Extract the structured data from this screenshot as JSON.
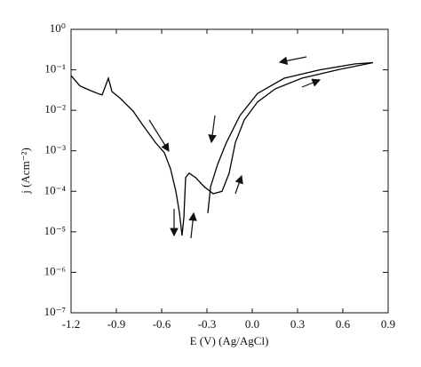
{
  "chart_data": {
    "type": "line",
    "yscale": "log",
    "color": "#000000",
    "xlabel": "E (V) (Ag/AgCl)",
    "ylabel": "j (Acm⁻²)",
    "x": [
      -1.2,
      -1.141,
      -1.082,
      -1.024,
      -0.994,
      -0.953,
      -0.929,
      -0.876,
      -0.788,
      -0.729,
      -0.641,
      -0.582,
      -0.541,
      -0.506,
      -0.482,
      -0.465,
      -0.453,
      -0.441,
      -0.418,
      -0.376,
      -0.318,
      -0.259,
      -0.2,
      -0.153,
      -0.112,
      -0.053,
      0.035,
      0.153,
      0.329,
      0.565,
      0.8,
      0.682,
      0.447,
      0.212,
      0.035,
      -0.082,
      -0.171,
      -0.229,
      -0.276,
      -0.294
    ],
    "values": [
      0.072,
      0.04,
      0.032,
      0.026,
      0.024,
      0.062,
      0.029,
      0.02,
      0.0095,
      0.0045,
      0.0016,
      0.00089,
      0.00036,
      0.0001,
      2.9e-05,
      8.1e-06,
      2.2e-05,
      0.00022,
      0.00028,
      0.00022,
      0.00013,
      8.7e-05,
      0.0001,
      0.00028,
      0.0016,
      0.0058,
      0.016,
      0.034,
      0.062,
      0.1,
      0.15,
      0.14,
      0.1,
      0.062,
      0.026,
      0.0074,
      0.0016,
      0.00047,
      0.00013,
      2.9e-05
    ],
    "xlim": [
      -1.2,
      0.9
    ],
    "xticks": [
      -1.2,
      -0.9,
      -0.6,
      -0.3,
      {
        "value": 0,
        "label": "0.0"
      },
      0.3,
      0.6,
      0.9
    ],
    "ylim": [
      1e-07,
      1
    ],
    "yticks": [
      {
        "value": 1,
        "label": "10⁰"
      },
      {
        "value": 0.1,
        "label": "10⁻¹"
      },
      {
        "value": 0.01,
        "label": "10⁻²"
      },
      {
        "value": 0.001,
        "label": "10⁻³"
      },
      {
        "value": 0.0001,
        "label": "10⁻⁴"
      },
      {
        "value": 1e-05,
        "label": "10⁻⁵"
      },
      {
        "value": 1e-06,
        "label": "10⁻⁶"
      },
      {
        "value": 1e-07,
        "label": "10⁻⁷"
      }
    ]
  }
}
